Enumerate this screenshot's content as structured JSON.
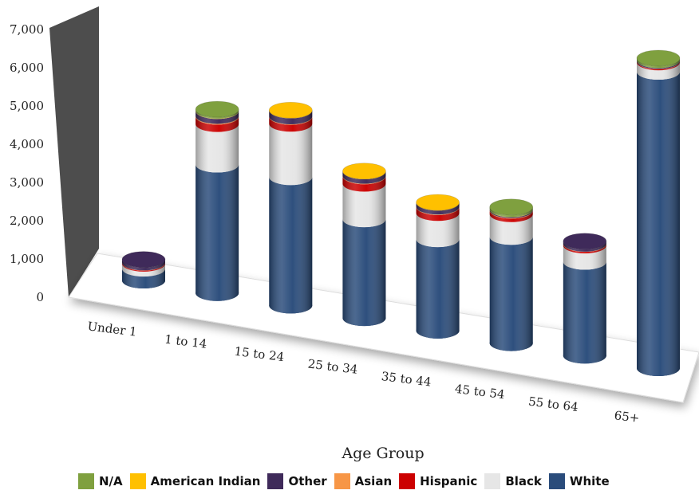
{
  "chart_data": {
    "type": "bar",
    "stacked": true,
    "style": "3d-cylinder",
    "xlabel": "Age Group",
    "ylabel": "",
    "ylim": [
      0,
      7000
    ],
    "yticks": [
      "0",
      "1,000",
      "2,000",
      "3,000",
      "4,000",
      "5,000",
      "6,000",
      "7,000"
    ],
    "categories": [
      "Under 1",
      "1 to 14",
      "15 to 24",
      "25 to 34",
      "35 to 44",
      "45 to 54",
      "55 to 64",
      "65+"
    ],
    "series": [
      {
        "name": "White",
        "color": "#2A4C7B",
        "values": [
          240,
          2600,
          2600,
          2000,
          1850,
          2150,
          1900,
          6000
        ]
      },
      {
        "name": "Black",
        "color": "#E6E6E6",
        "values": [
          100,
          820,
          1080,
          720,
          530,
          460,
          330,
          190
        ]
      },
      {
        "name": "Hispanic",
        "color": "#CC0000",
        "values": [
          20,
          150,
          140,
          150,
          120,
          70,
          30,
          20
        ]
      },
      {
        "name": "Asian",
        "color": "#F79646",
        "values": [
          5,
          15,
          10,
          10,
          10,
          10,
          5,
          5
        ]
      },
      {
        "name": "Other",
        "color": "#3F2A5A",
        "values": [
          60,
          100,
          120,
          90,
          80,
          20,
          50,
          20
        ]
      },
      {
        "name": "American Indian",
        "color": "#FFC000",
        "values": [
          0,
          5,
          5,
          5,
          5,
          5,
          0,
          0
        ]
      },
      {
        "name": "N/A",
        "color": "#7FA03F",
        "values": [
          0,
          30,
          0,
          0,
          0,
          40,
          0,
          40
        ]
      }
    ],
    "legend": {
      "placement": "bottom",
      "order": [
        "N/A",
        "American Indian",
        "Other",
        "Asian",
        "Hispanic",
        "Black",
        "White"
      ]
    },
    "wall_color": "#4D4D4D",
    "grid": false
  }
}
